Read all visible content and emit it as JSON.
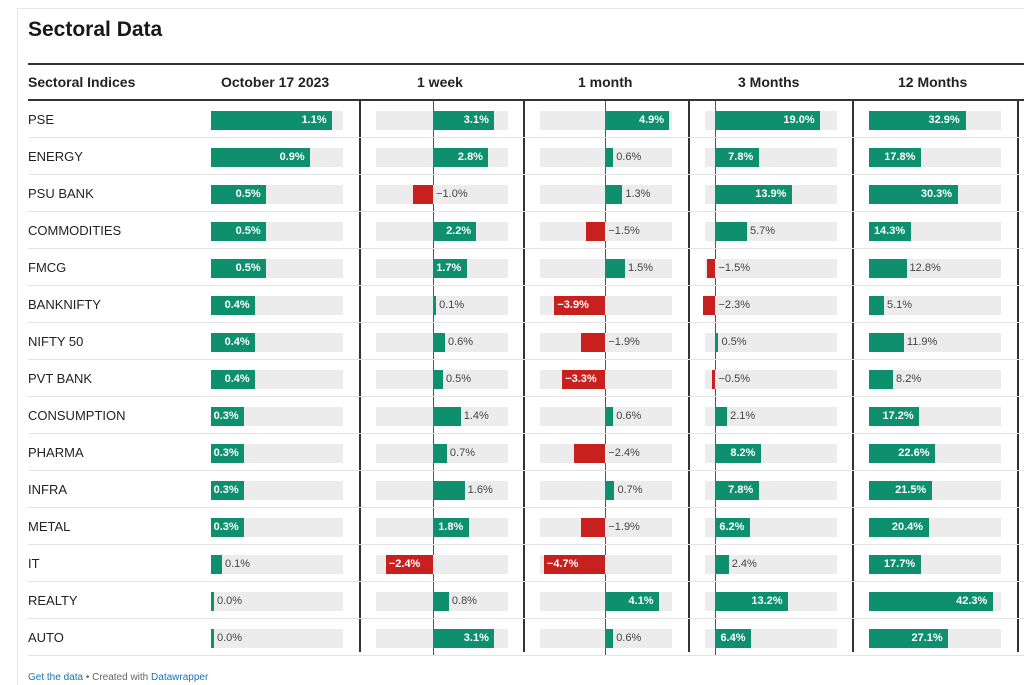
{
  "title": "Sectoral Data",
  "headers": [
    "Sectoral Indices",
    "October 17 2023",
    "1 week",
    "1 month",
    "3 Months",
    "12 Months"
  ],
  "colors": {
    "positive": "#0e8f6d",
    "negative": "#c8201f",
    "track": "#ececec"
  },
  "chart_data": {
    "type": "bar",
    "categories": [
      "PSE",
      "ENERGY",
      "PSU BANK",
      "COMMODITIES",
      "FMCG",
      "BANKNIFTY",
      "NIFTY 50",
      "PVT BANK",
      "CONSUMPTION",
      "PHARMA",
      "INFRA",
      "METAL",
      "IT",
      "REALTY",
      "AUTO"
    ],
    "series": [
      {
        "name": "October 17 2023",
        "values": [
          1.1,
          0.9,
          0.5,
          0.5,
          0.5,
          0.4,
          0.4,
          0.4,
          0.3,
          0.3,
          0.3,
          0.3,
          0.1,
          0.0,
          0.0
        ]
      },
      {
        "name": "1 week",
        "values": [
          3.1,
          2.8,
          -1.0,
          2.2,
          1.7,
          0.1,
          0.6,
          0.5,
          1.4,
          0.7,
          1.6,
          1.8,
          -2.4,
          0.8,
          3.1
        ]
      },
      {
        "name": "1 month",
        "values": [
          4.9,
          0.6,
          1.3,
          -1.5,
          1.5,
          -3.9,
          -1.9,
          -3.3,
          0.6,
          -2.4,
          0.7,
          -1.9,
          -4.7,
          4.1,
          0.6
        ]
      },
      {
        "name": "3 Months",
        "values": [
          19.0,
          7.8,
          13.9,
          5.7,
          -1.5,
          -2.3,
          0.5,
          -0.5,
          2.1,
          8.2,
          7.8,
          6.2,
          2.4,
          13.2,
          6.4
        ]
      },
      {
        "name": "12 Months",
        "values": [
          32.9,
          17.8,
          30.3,
          14.3,
          12.8,
          5.1,
          11.9,
          8.2,
          17.2,
          22.6,
          21.5,
          20.4,
          17.7,
          42.3,
          27.1
        ]
      }
    ],
    "labels": [
      [
        "1.1%",
        "0.9%",
        "0.5%",
        "0.5%",
        "0.5%",
        "0.4%",
        "0.4%",
        "0.4%",
        "0.3%",
        "0.3%",
        "0.3%",
        "0.3%",
        "0.1%",
        "0.0%",
        "0.0%"
      ],
      [
        "3.1%",
        "2.8%",
        "−1.0%",
        "2.2%",
        "1.7%",
        "0.1%",
        "0.6%",
        "0.5%",
        "1.4%",
        "0.7%",
        "1.6%",
        "1.8%",
        "−2.4%",
        "0.8%",
        "3.1%"
      ],
      [
        "4.9%",
        "0.6%",
        "1.3%",
        "−1.5%",
        "1.5%",
        "−3.9%",
        "−1.9%",
        "−3.3%",
        "0.6%",
        "−2.4%",
        "0.7%",
        "−1.9%",
        "−4.7%",
        "4.1%",
        "0.6%"
      ],
      [
        "19.0%",
        "7.8%",
        "13.9%",
        "5.7%",
        "−1.5%",
        "−2.3%",
        "0.5%",
        "−0.5%",
        "2.1%",
        "8.2%",
        "7.8%",
        "6.2%",
        "2.4%",
        "13.2%",
        "6.4%"
      ],
      [
        "32.9%",
        "17.8%",
        "30.3%",
        "14.3%",
        "12.8%",
        "5.1%",
        "11.9%",
        "8.2%",
        "17.2%",
        "22.6%",
        "21.5%",
        "20.4%",
        "17.7%",
        "42.3%",
        "27.1%"
      ]
    ],
    "domains": [
      [
        0,
        1.2
      ],
      [
        -2.9,
        3.8
      ],
      [
        -5,
        5.1
      ],
      [
        -1.9,
        22
      ],
      [
        0,
        45
      ]
    ]
  },
  "footer": {
    "get_data": "Get the data",
    "sep": " • Created with ",
    "tool": "Datawrapper"
  }
}
